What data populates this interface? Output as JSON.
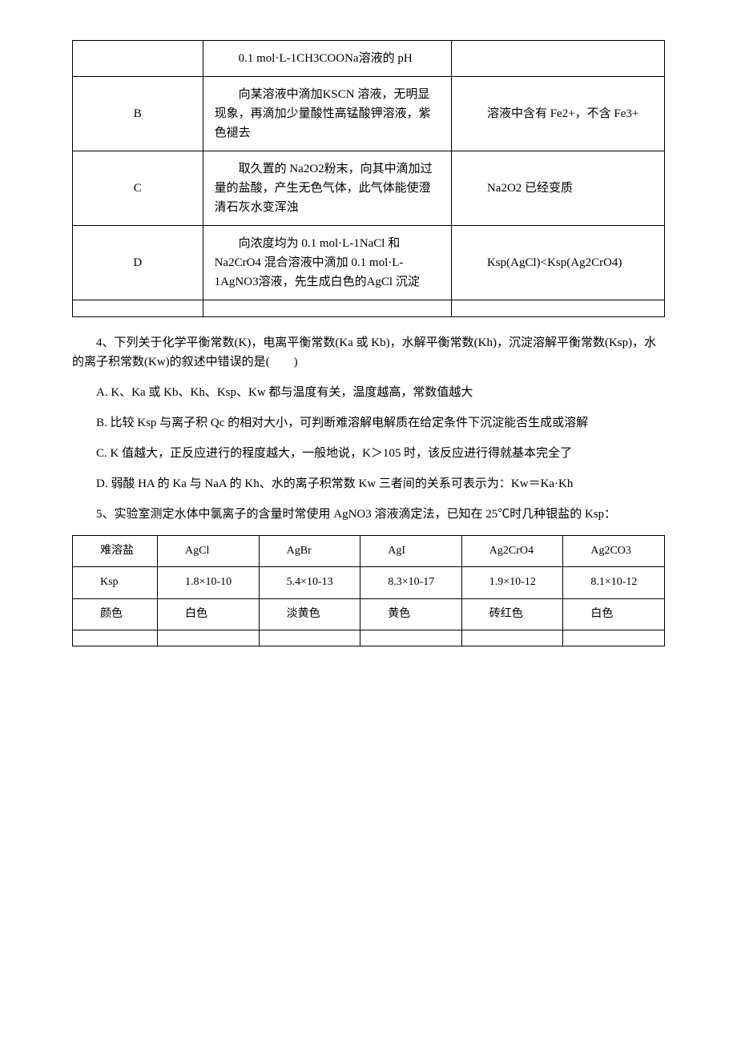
{
  "table1": {
    "rows": [
      {
        "label": "",
        "experiment": "0.1 mol·L-1CH3COONa溶液的 pH",
        "conclusion": ""
      },
      {
        "label": "B",
        "experiment": "向某溶液中滴加KSCN 溶液，无明显现象，再滴加少量酸性高锰酸钾溶液，紫色褪去",
        "conclusion": "溶液中含有 Fe2+，不含 Fe3+"
      },
      {
        "label": "C",
        "experiment": "取久置的 Na2O2粉末，向其中滴加过量的盐酸，产生无色气体，此气体能使澄清石灰水变浑浊",
        "conclusion": "Na2O2 已经变质"
      },
      {
        "label": "D",
        "experiment": "向浓度均为 0.1 mol·L-1NaCl 和Na2CrO4 混合溶液中滴加 0.1 mol·L-1AgNO3溶液，先生成白色的AgCl 沉淀",
        "conclusion": "Ksp(AgCl)<Ksp(Ag2CrO4)"
      }
    ]
  },
  "paragraphs": {
    "q4": "4、下列关于化学平衡常数(K)，电离平衡常数(Ka 或 Kb)，水解平衡常数(Kh)，沉淀溶解平衡常数(Ksp)，水的离子积常数(Kw)的叙述中错误的是(　　)",
    "q4a": "A. K、Ka 或 Kb、Kh、Ksp、Kw 都与温度有关，温度越高，常数值越大",
    "q4b": "B. 比较 Ksp 与离子积 Qc 的相对大小，可判断难溶解电解质在给定条件下沉淀能否生成或溶解",
    "q4c": "C. K 值越大，正反应进行的程度越大，一般地说，K＞105 时，该反应进行得就基本完全了",
    "q4d": "D. 弱酸 HA 的 Ka 与 NaA 的 Kh、水的离子积常数 Kw 三者间的关系可表示为：Kw＝Ka·Kh",
    "q5": "5、实验室测定水体中氯离子的含量时常使用 AgNO3 溶液滴定法，已知在 25℃时几种银盐的 Ksp："
  },
  "table2": {
    "headers": [
      "难溶盐",
      "AgCl",
      "AgBr",
      "AgI",
      "Ag2CrO4",
      "Ag2CO3"
    ],
    "rows": [
      [
        "Ksp",
        "1.8×10-10",
        "5.4×10-13",
        "8.3×10-17",
        "1.9×10-12",
        "8.1×10-12"
      ],
      [
        "颜色",
        "白色",
        "淡黄色",
        "黄色",
        "砖红色",
        "白色"
      ]
    ]
  }
}
